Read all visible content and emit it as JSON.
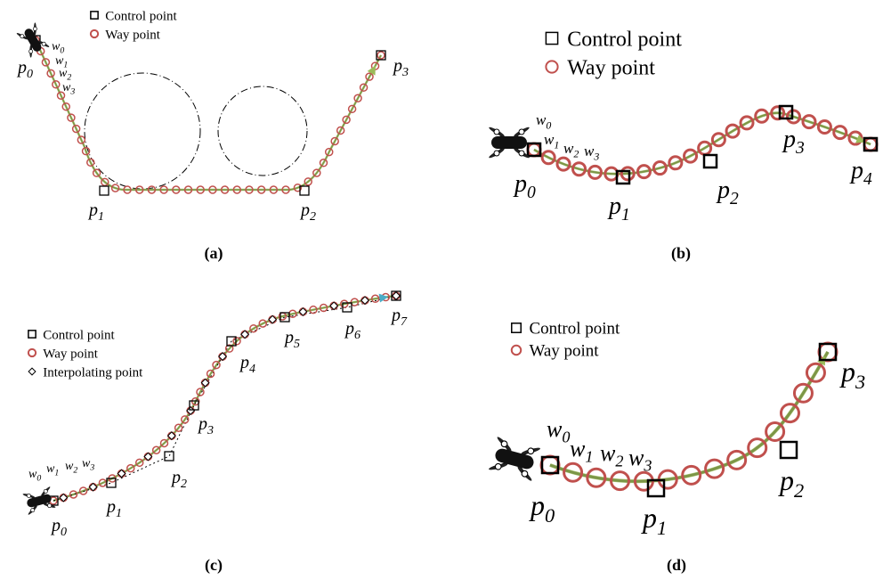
{
  "panels": [
    {
      "caption": "(a)",
      "legend": [
        "Control point",
        "Way point"
      ],
      "control_points": [
        {
          "name": "p",
          "index": "0"
        },
        {
          "name": "p",
          "index": "1"
        },
        {
          "name": "p",
          "index": "2"
        },
        {
          "name": "p",
          "index": "3"
        }
      ],
      "way_points": [
        {
          "name": "w",
          "index": "0"
        },
        {
          "name": "w",
          "index": "1"
        },
        {
          "name": "w",
          "index": "2"
        },
        {
          "name": "w",
          "index": "3"
        }
      ]
    },
    {
      "caption": "(b)",
      "legend": [
        "Control point",
        "Way point"
      ],
      "control_points": [
        {
          "name": "p",
          "index": "0"
        },
        {
          "name": "p",
          "index": "1"
        },
        {
          "name": "p",
          "index": "2"
        },
        {
          "name": "p",
          "index": "3"
        },
        {
          "name": "p",
          "index": "4"
        }
      ],
      "way_points": [
        {
          "name": "w",
          "index": "0"
        },
        {
          "name": "w",
          "index": "1"
        },
        {
          "name": "w",
          "index": "2"
        },
        {
          "name": "w",
          "index": "3"
        }
      ]
    },
    {
      "caption": "(c)",
      "legend": [
        "Control point",
        "Way point",
        "Interpolating point"
      ],
      "control_points": [
        {
          "name": "p",
          "index": "0"
        },
        {
          "name": "p",
          "index": "1"
        },
        {
          "name": "p",
          "index": "2"
        },
        {
          "name": "p",
          "index": "3"
        },
        {
          "name": "p",
          "index": "4"
        },
        {
          "name": "p",
          "index": "5"
        },
        {
          "name": "p",
          "index": "6"
        },
        {
          "name": "p",
          "index": "7"
        }
      ],
      "way_points": [
        {
          "name": "w",
          "index": "0"
        },
        {
          "name": "w",
          "index": "1"
        },
        {
          "name": "w",
          "index": "2"
        },
        {
          "name": "w",
          "index": "3"
        }
      ]
    },
    {
      "caption": "(d)",
      "legend": [
        "Control point",
        "Way point"
      ],
      "control_points": [
        {
          "name": "p",
          "index": "0"
        },
        {
          "name": "p",
          "index": "1"
        },
        {
          "name": "p",
          "index": "2"
        },
        {
          "name": "p",
          "index": "3"
        }
      ],
      "way_points": [
        {
          "name": "w",
          "index": "0"
        },
        {
          "name": "w",
          "index": "1"
        },
        {
          "name": "w",
          "index": "2"
        },
        {
          "name": "w",
          "index": "3"
        }
      ]
    }
  ]
}
